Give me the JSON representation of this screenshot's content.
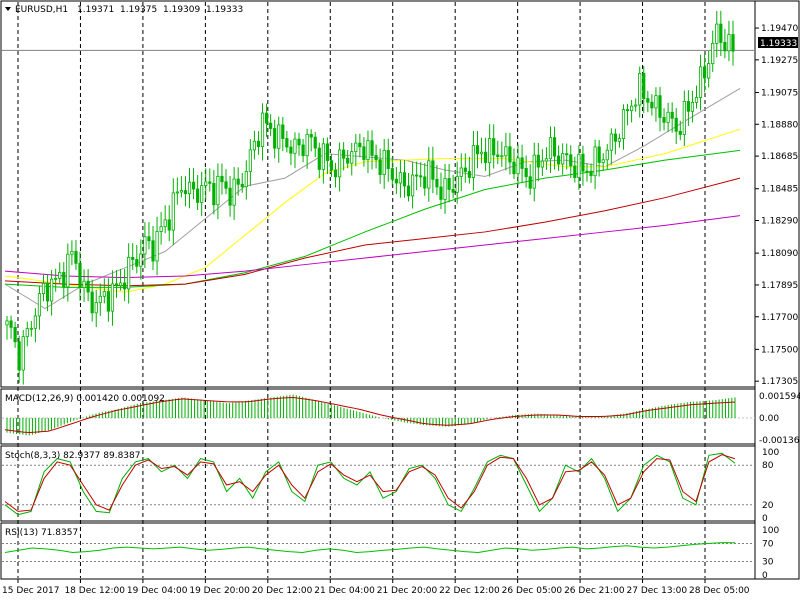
{
  "header": {
    "symbol": "EURUSD,H1",
    "ohlc": [
      "1.19371",
      "1.19375",
      "1.19309",
      "1.19333"
    ]
  },
  "current_price": "1.19333",
  "colors": {
    "background": "#ffffff",
    "candle_bull": "#00b000",
    "candle_bear": "#008000",
    "ma_gray": "#a0a0a0",
    "ma_yellow": "#ffff00",
    "ma_green": "#00c000",
    "ma_red": "#c00000",
    "ma_magenta": "#c000c0",
    "macd_hist": "#00b000",
    "macd_signal": "#c00000",
    "stoch_main": "#00b000",
    "stoch_signal": "#c00000",
    "rsi": "#00c000",
    "grid_dash": "#000000",
    "border": "#000000"
  },
  "chart_data": [
    {
      "type": "candlestick",
      "panel": "price",
      "title": "EURUSD,H1",
      "y_ticks": [
        "1.19470",
        "1.19275",
        "1.19075",
        "1.18880",
        "1.18685",
        "1.18485",
        "1.18290",
        "1.18090",
        "1.17895",
        "1.17700",
        "1.17500",
        "1.17305"
      ],
      "ylim": [
        1.173,
        1.1955
      ],
      "x_tick_labels": [
        "15 Dec 2017",
        "18 Dec 12:00",
        "19 Dec 04:00",
        "19 Dec 20:00",
        "20 Dec 12:00",
        "21 Dec 04:00",
        "21 Dec 20:00",
        "22 Dec 12:00",
        "26 Dec 05:00",
        "26 Dec 21:00",
        "27 Dec 13:00",
        "28 Dec 05:00"
      ],
      "close_path": [
        1.1765,
        1.1762,
        1.1745,
        1.1758,
        1.1772,
        1.1785,
        1.179,
        1.1792,
        1.18,
        1.181,
        1.179,
        1.178,
        1.1778,
        1.1782,
        1.1785,
        1.179,
        1.18,
        1.1805,
        1.1815,
        1.1812,
        1.1822,
        1.183,
        1.1843,
        1.1852,
        1.1845,
        1.1848,
        1.185,
        1.1848,
        1.1852,
        1.1845,
        1.185,
        1.186,
        1.1875,
        1.189,
        1.1885,
        1.188,
        1.1878,
        1.1872,
        1.1875,
        1.188,
        1.187,
        1.1868,
        1.186,
        1.1865,
        1.187,
        1.1872,
        1.1875,
        1.1868,
        1.1865,
        1.1862,
        1.1855,
        1.185,
        1.1852,
        1.1855,
        1.1858,
        1.1854,
        1.1845,
        1.185,
        1.1855,
        1.186,
        1.1868,
        1.1872,
        1.187,
        1.1872,
        1.1868,
        1.1865,
        1.186,
        1.1855,
        1.1862,
        1.187,
        1.1872,
        1.1868,
        1.1865,
        1.1862,
        1.186,
        1.1862,
        1.1868,
        1.1872,
        1.188,
        1.189,
        1.19,
        1.191,
        1.1905,
        1.1898,
        1.1895,
        1.189,
        1.1885,
        1.1895,
        1.1905,
        1.1915,
        1.193,
        1.1945,
        1.1938,
        1.19333
      ],
      "series": [
        {
          "name": "MA gray",
          "color": "#a0a0a0",
          "points": [
            [
              0,
              1.179
            ],
            [
              40,
              1.1775
            ],
            [
              80,
              1.179
            ],
            [
              120,
              1.18
            ],
            [
              160,
              1.181
            ],
            [
              200,
              1.183
            ],
            [
              240,
              1.185
            ],
            [
              280,
              1.1855
            ],
            [
              320,
              1.187
            ],
            [
              360,
              1.1868
            ],
            [
              400,
              1.1866
            ],
            [
              440,
              1.186
            ],
            [
              480,
              1.1856
            ],
            [
              520,
              1.1865
            ],
            [
              560,
              1.1866
            ],
            [
              600,
              1.1862
            ],
            [
              640,
              1.1875
            ],
            [
              680,
              1.189
            ],
            [
              735,
              1.191
            ]
          ]
        },
        {
          "name": "MA yellow",
          "color": "#ffff00",
          "points": [
            [
              0,
              1.1795
            ],
            [
              60,
              1.179
            ],
            [
              120,
              1.1785
            ],
            [
              160,
              1.179
            ],
            [
              200,
              1.18
            ],
            [
              240,
              1.182
            ],
            [
              280,
              1.184
            ],
            [
              320,
              1.1858
            ],
            [
              360,
              1.1865
            ],
            [
              400,
              1.1866
            ],
            [
              440,
              1.1867
            ],
            [
              500,
              1.1867
            ],
            [
              560,
              1.1862
            ],
            [
              600,
              1.1862
            ],
            [
              660,
              1.187
            ],
            [
              735,
              1.1885
            ]
          ]
        },
        {
          "name": "MA green",
          "color": "#00c000",
          "points": [
            [
              0,
              1.179
            ],
            [
              60,
              1.1788
            ],
            [
              120,
              1.1788
            ],
            [
              180,
              1.179
            ],
            [
              240,
              1.1797
            ],
            [
              300,
              1.1807
            ],
            [
              360,
              1.1822
            ],
            [
              420,
              1.1836
            ],
            [
              480,
              1.1848
            ],
            [
              540,
              1.1855
            ],
            [
              600,
              1.186
            ],
            [
              660,
              1.1866
            ],
            [
              735,
              1.1872
            ]
          ]
        },
        {
          "name": "MA red",
          "color": "#c00000",
          "points": [
            [
              0,
              1.1792
            ],
            [
              60,
              1.179
            ],
            [
              120,
              1.1789
            ],
            [
              180,
              1.179
            ],
            [
              240,
              1.1796
            ],
            [
              300,
              1.1806
            ],
            [
              360,
              1.1814
            ],
            [
              420,
              1.1818
            ],
            [
              480,
              1.1822
            ],
            [
              540,
              1.1828
            ],
            [
              600,
              1.1835
            ],
            [
              660,
              1.1843
            ],
            [
              735,
              1.1855
            ]
          ]
        },
        {
          "name": "MA magenta",
          "color": "#c000c0",
          "points": [
            [
              0,
              1.1798
            ],
            [
              60,
              1.1795
            ],
            [
              120,
              1.1794
            ],
            [
              180,
              1.1795
            ],
            [
              240,
              1.1798
            ],
            [
              300,
              1.1802
            ],
            [
              360,
              1.1806
            ],
            [
              420,
              1.181
            ],
            [
              480,
              1.1814
            ],
            [
              540,
              1.1818
            ],
            [
              600,
              1.1822
            ],
            [
              660,
              1.1826
            ],
            [
              735,
              1.1832
            ]
          ]
        }
      ]
    },
    {
      "type": "macd",
      "panel": "macd",
      "label": "MACD(12,26,9) 0.001420 0.001092",
      "y_ticks": [
        "0.001594",
        "0.00",
        "-0.001364"
      ],
      "ylim": [
        -0.0015,
        0.0017
      ],
      "histogram_path": [
        -0.001,
        -0.0012,
        -0.0008,
        -0.0002,
        0.0003,
        0.0006,
        0.001,
        0.0012,
        0.0014,
        0.0012,
        0.001,
        0.0012,
        0.0014,
        0.0016,
        0.0012,
        0.0008,
        0.0004,
        0.0,
        -0.0003,
        -0.0005,
        -0.0006,
        -0.0004,
        0.0,
        0.0002,
        0.0003,
        0.0002,
        0.0001,
        0.0001,
        0.0003,
        0.0006,
        0.0009,
        0.0011,
        0.0012,
        0.0014
      ],
      "signal_path": [
        -0.0008,
        -0.001,
        -0.0009,
        -0.0004,
        0.0001,
        0.0005,
        0.0008,
        0.0011,
        0.0013,
        0.0012,
        0.0011,
        0.0011,
        0.0013,
        0.0014,
        0.0012,
        0.0009,
        0.0006,
        0.0002,
        -0.0001,
        -0.0004,
        -0.0005,
        -0.0004,
        -0.0001,
        0.0001,
        0.0002,
        0.0002,
        0.0001,
        0.0001,
        0.0002,
        0.0005,
        0.0007,
        0.0009,
        0.001,
        0.00109
      ]
    },
    {
      "type": "stochastic",
      "panel": "stoch",
      "label": "Stoch(8,3,3) 82.9377 89.8387",
      "y_ticks": [
        "100",
        "80",
        "20",
        "0"
      ],
      "ylim": [
        0,
        100
      ],
      "main_path": [
        20,
        5,
        10,
        70,
        90,
        85,
        40,
        10,
        8,
        60,
        85,
        90,
        70,
        80,
        60,
        90,
        85,
        40,
        60,
        30,
        70,
        85,
        40,
        25,
        80,
        85,
        60,
        50,
        70,
        30,
        40,
        75,
        80,
        60,
        20,
        10,
        45,
        85,
        95,
        90,
        50,
        10,
        30,
        80,
        70,
        90,
        60,
        10,
        30,
        80,
        95,
        85,
        30,
        20,
        95,
        98,
        82.9
      ],
      "signal_path": [
        25,
        10,
        12,
        60,
        85,
        80,
        50,
        20,
        12,
        50,
        80,
        88,
        75,
        78,
        65,
        85,
        82,
        50,
        55,
        40,
        65,
        80,
        50,
        30,
        70,
        82,
        65,
        55,
        65,
        40,
        42,
        70,
        78,
        65,
        30,
        15,
        40,
        80,
        92,
        90,
        60,
        20,
        30,
        70,
        72,
        85,
        65,
        20,
        30,
        70,
        90,
        88,
        40,
        25,
        85,
        96,
        89.8
      ]
    },
    {
      "type": "line",
      "panel": "rsi",
      "label": "RSI(13) 71.8357",
      "y_ticks": [
        "100",
        "70",
        "30",
        "0"
      ],
      "ylim": [
        0,
        100
      ],
      "values": [
        50,
        55,
        60,
        58,
        55,
        50,
        52,
        55,
        60,
        62,
        60,
        58,
        60,
        62,
        58,
        55,
        57,
        60,
        62,
        58,
        55,
        52,
        50,
        55,
        58,
        55,
        50,
        52,
        55,
        57,
        60,
        62,
        58,
        55,
        52,
        50,
        55,
        60,
        58,
        55,
        57,
        60,
        62,
        58,
        60,
        63,
        65,
        62,
        60,
        62,
        65,
        68,
        70,
        72,
        71.8
      ]
    }
  ]
}
